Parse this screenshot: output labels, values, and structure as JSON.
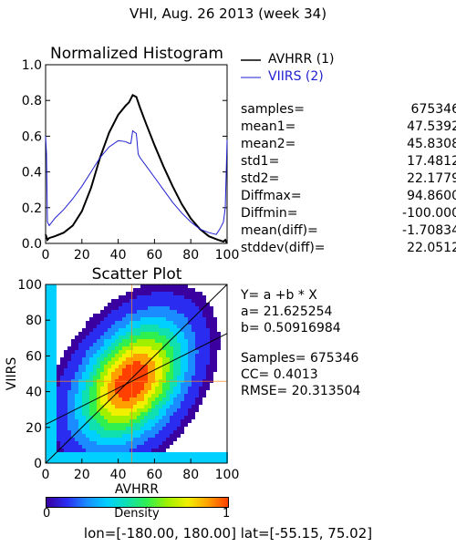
{
  "page_title": "VHI,  Aug. 26 2013 (week 34)",
  "footer": {
    "lon_label": "lon=",
    "lon_range": "[-180.00, 180.00]",
    "lat_label": "lat=",
    "lat_range": "[-55.15, 75.02]"
  },
  "legend": {
    "items": [
      {
        "label": "AVHRR (1)",
        "color": "#000000"
      },
      {
        "label": "VIIRS (2)",
        "color": "#1f1fd0"
      }
    ]
  },
  "stats": [
    {
      "label": "samples=",
      "value": "675346"
    },
    {
      "label": "mean1=",
      "value": "47.5392"
    },
    {
      "label": "mean2=",
      "value": "45.8308"
    },
    {
      "label": "std1=",
      "value": "17.4812"
    },
    {
      "label": "std2=",
      "value": "22.1779"
    },
    {
      "label": "Diffmax=",
      "value": "94.8600"
    },
    {
      "label": "Diffmin=",
      "value": "-100.000"
    },
    {
      "label": "mean(diff)=",
      "value": "-1.70834"
    },
    {
      "label": "stddev(diff)=",
      "value": "22.0512"
    }
  ],
  "regression": {
    "equation": "Y= a +b * X",
    "a_text": "a= 21.625254",
    "b_text": "b= 0.50916984",
    "samples_text": "Samples= 675346",
    "cc_text": "CC=  0.4013",
    "rmse_text": "RMSE= 20.313504"
  },
  "colorbar": {
    "label": "Density",
    "min_label": "0",
    "max_label": "1",
    "colors": [
      "#3a00a0",
      "#2a2cf0",
      "#1a8cff",
      "#00d0ff",
      "#10e0b0",
      "#30f050",
      "#a0f000",
      "#f0f000",
      "#ffa000",
      "#ff4000"
    ]
  },
  "chart_data": [
    {
      "type": "line",
      "title": "Normalized Histogram",
      "xlim": [
        0,
        100
      ],
      "ylim": [
        0,
        1
      ],
      "x_ticks": [
        "0",
        "20",
        "40",
        "60",
        "80",
        "100"
      ],
      "y_ticks": [
        "0.0",
        "0.2",
        "0.4",
        "0.6",
        "0.8",
        "1.0"
      ],
      "series": [
        {
          "name": "AVHRR (1)",
          "color": "#000000",
          "x": [
            0,
            1,
            2,
            5,
            10,
            15,
            20,
            25,
            30,
            35,
            40,
            44,
            46,
            48,
            50,
            51,
            52,
            55,
            60,
            65,
            70,
            75,
            80,
            85,
            90,
            95,
            98,
            99,
            100
          ],
          "y": [
            0.05,
            0.02,
            0.03,
            0.04,
            0.06,
            0.1,
            0.18,
            0.31,
            0.48,
            0.62,
            0.72,
            0.77,
            0.79,
            0.83,
            0.82,
            0.79,
            0.76,
            0.68,
            0.55,
            0.43,
            0.32,
            0.22,
            0.14,
            0.08,
            0.04,
            0.02,
            0.01,
            0.02,
            0.0
          ]
        },
        {
          "name": "VIIRS (2)",
          "color": "#1f1fd0",
          "x": [
            0,
            0.5,
            1,
            2,
            5,
            10,
            15,
            20,
            25,
            30,
            35,
            40,
            44,
            46,
            47,
            48,
            50,
            51,
            52,
            55,
            60,
            65,
            70,
            75,
            80,
            85,
            90,
            94,
            96,
            98,
            99,
            100
          ],
          "y": [
            0.6,
            0.5,
            0.12,
            0.1,
            0.14,
            0.19,
            0.25,
            0.32,
            0.4,
            0.48,
            0.54,
            0.575,
            0.57,
            0.56,
            0.56,
            0.63,
            0.615,
            0.5,
            0.48,
            0.44,
            0.37,
            0.3,
            0.23,
            0.17,
            0.12,
            0.08,
            0.06,
            0.05,
            0.08,
            0.12,
            0.2,
            0.58
          ]
        }
      ]
    },
    {
      "type": "scatter",
      "title": "Scatter Plot",
      "xlabel": "AVHRR",
      "ylabel": "VIIRS",
      "xlim": [
        0,
        100
      ],
      "ylim": [
        0,
        100
      ],
      "x_ticks": [
        "0",
        "20",
        "40",
        "60",
        "80",
        "100"
      ],
      "y_ticks": [
        "0",
        "20",
        "40",
        "60",
        "80",
        "100"
      ],
      "density_center": [
        47.5,
        45.8
      ],
      "correlation": 0.4013,
      "reference_line": {
        "x": [
          0,
          100
        ],
        "y": [
          0,
          100
        ]
      },
      "regression_line": {
        "a": 21.625254,
        "b": 0.50916984
      },
      "mean_crosshair": [
        47.5,
        45.8
      ]
    }
  ]
}
